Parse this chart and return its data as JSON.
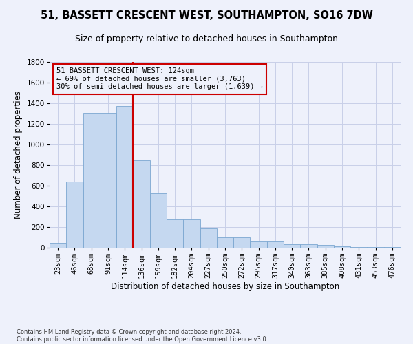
{
  "title": "51, BASSETT CRESCENT WEST, SOUTHAMPTON, SO16 7DW",
  "subtitle": "Size of property relative to detached houses in Southampton",
  "xlabel": "Distribution of detached houses by size in Southampton",
  "ylabel": "Number of detached properties",
  "footnote": "Contains HM Land Registry data © Crown copyright and database right 2024.\nContains public sector information licensed under the Open Government Licence v3.0.",
  "bar_categories": [
    "23sqm",
    "46sqm",
    "68sqm",
    "91sqm",
    "114sqm",
    "136sqm",
    "159sqm",
    "182sqm",
    "204sqm",
    "227sqm",
    "250sqm",
    "272sqm",
    "295sqm",
    "317sqm",
    "340sqm",
    "363sqm",
    "385sqm",
    "408sqm",
    "431sqm",
    "453sqm",
    "476sqm"
  ],
  "bar_values": [
    50,
    640,
    1310,
    1310,
    1375,
    845,
    530,
    275,
    275,
    185,
    100,
    100,
    60,
    60,
    35,
    35,
    25,
    15,
    10,
    10,
    10
  ],
  "bar_color": "#c5d8f0",
  "bar_edge_color": "#7ba7d0",
  "property_line_bin": 4,
  "annotation_text": "51 BASSETT CRESCENT WEST: 124sqm\n← 69% of detached houses are smaller (3,763)\n30% of semi-detached houses are larger (1,639) →",
  "annotation_box_color": "#cc0000",
  "ylim": [
    0,
    1800
  ],
  "yticks": [
    0,
    200,
    400,
    600,
    800,
    1000,
    1200,
    1400,
    1600,
    1800
  ],
  "background_color": "#eef1fb",
  "grid_color": "#c8cfe8",
  "title_fontsize": 10.5,
  "subtitle_fontsize": 9,
  "axis_label_fontsize": 8.5,
  "tick_fontsize": 7.5,
  "footnote_fontsize": 6.0
}
